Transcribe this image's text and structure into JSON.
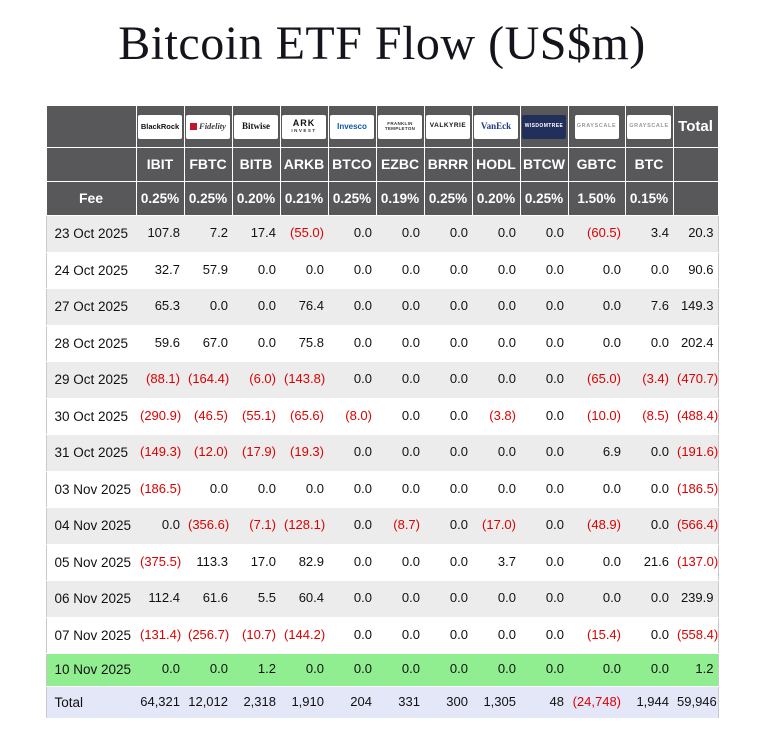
{
  "colors": {
    "header_bg": "#58585a",
    "header_text": "#ffffff",
    "negative": "#dd0000",
    "alt_row_bg": "#ececec",
    "latest_row_bg": "#90ee90",
    "total_row_bg": "#e4e7f7"
  },
  "chart_data": {
    "type": "table",
    "title": "Bitcoin ETF Flow (US$m)",
    "units": "US$m",
    "labels": {
      "fee": "Fee",
      "total": "Total"
    },
    "columns": [
      {
        "provider": "BlackRock",
        "ticker": "IBIT",
        "fee": "0.25%",
        "logo_style": "blackrock",
        "logo_text": "BlackRock"
      },
      {
        "provider": "Fidelity",
        "ticker": "FBTC",
        "fee": "0.25%",
        "logo_style": "fidelity",
        "logo_text": "Fidelity"
      },
      {
        "provider": "Bitwise",
        "ticker": "BITB",
        "fee": "0.20%",
        "logo_style": "bitwise",
        "logo_text": "Bitwise"
      },
      {
        "provider": "ARK Invest",
        "ticker": "ARKB",
        "fee": "0.21%",
        "logo_style": "ark",
        "logo_text": "ARK",
        "logo_sub": "INVEST"
      },
      {
        "provider": "Invesco",
        "ticker": "BTCO",
        "fee": "0.25%",
        "logo_style": "invesco",
        "logo_text": "Invesco"
      },
      {
        "provider": "Franklin Templeton",
        "ticker": "EZBC",
        "fee": "0.19%",
        "logo_style": "franklin",
        "logo_text": "FRANKLIN",
        "logo_sub": "TEMPLETON"
      },
      {
        "provider": "Valkyrie",
        "ticker": "BRRR",
        "fee": "0.25%",
        "logo_style": "valkyrie",
        "logo_text": "VALKYRIE"
      },
      {
        "provider": "VanEck",
        "ticker": "HODL",
        "fee": "0.20%",
        "logo_style": "vaneck",
        "logo_text": "VanEck"
      },
      {
        "provider": "WisdomTree",
        "ticker": "BTCW",
        "fee": "0.25%",
        "logo_style": "wisdomtree",
        "logo_text": "WISDOMTREE"
      },
      {
        "provider": "Grayscale",
        "ticker": "GBTC",
        "fee": "1.50%",
        "logo_style": "grayscale",
        "logo_text": "GRAYSCALE"
      },
      {
        "provider": "Grayscale",
        "ticker": "BTC",
        "fee": "0.15%",
        "logo_style": "grayscale",
        "logo_text": "GRAYSCALE"
      }
    ],
    "rows": [
      {
        "date": "23 Oct 2025",
        "values": [
          "107.8",
          "7.2",
          "17.4",
          "(55.0)",
          "0.0",
          "0.0",
          "0.0",
          "0.0",
          "0.0",
          "(60.5)",
          "3.4",
          "20.3"
        ]
      },
      {
        "date": "24 Oct 2025",
        "values": [
          "32.7",
          "57.9",
          "0.0",
          "0.0",
          "0.0",
          "0.0",
          "0.0",
          "0.0",
          "0.0",
          "0.0",
          "0.0",
          "90.6"
        ]
      },
      {
        "date": "27 Oct 2025",
        "values": [
          "65.3",
          "0.0",
          "0.0",
          "76.4",
          "0.0",
          "0.0",
          "0.0",
          "0.0",
          "0.0",
          "0.0",
          "7.6",
          "149.3"
        ]
      },
      {
        "date": "28 Oct 2025",
        "values": [
          "59.6",
          "67.0",
          "0.0",
          "75.8",
          "0.0",
          "0.0",
          "0.0",
          "0.0",
          "0.0",
          "0.0",
          "0.0",
          "202.4"
        ]
      },
      {
        "date": "29 Oct 2025",
        "values": [
          "(88.1)",
          "(164.4)",
          "(6.0)",
          "(143.8)",
          "0.0",
          "0.0",
          "0.0",
          "0.0",
          "0.0",
          "(65.0)",
          "(3.4)",
          "(470.7)"
        ]
      },
      {
        "date": "30 Oct 2025",
        "values": [
          "(290.9)",
          "(46.5)",
          "(55.1)",
          "(65.6)",
          "(8.0)",
          "0.0",
          "0.0",
          "(3.8)",
          "0.0",
          "(10.0)",
          "(8.5)",
          "(488.4)"
        ]
      },
      {
        "date": "31 Oct 2025",
        "values": [
          "(149.3)",
          "(12.0)",
          "(17.9)",
          "(19.3)",
          "0.0",
          "0.0",
          "0.0",
          "0.0",
          "0.0",
          "6.9",
          "0.0",
          "(191.6)"
        ]
      },
      {
        "date": "03 Nov 2025",
        "values": [
          "(186.5)",
          "0.0",
          "0.0",
          "0.0",
          "0.0",
          "0.0",
          "0.0",
          "0.0",
          "0.0",
          "0.0",
          "0.0",
          "(186.5)"
        ]
      },
      {
        "date": "04 Nov 2025",
        "values": [
          "0.0",
          "(356.6)",
          "(7.1)",
          "(128.1)",
          "0.0",
          "(8.7)",
          "0.0",
          "(17.0)",
          "0.0",
          "(48.9)",
          "0.0",
          "(566.4)"
        ]
      },
      {
        "date": "05 Nov 2025",
        "values": [
          "(375.5)",
          "113.3",
          "17.0",
          "82.9",
          "0.0",
          "0.0",
          "0.0",
          "3.7",
          "0.0",
          "0.0",
          "21.6",
          "(137.0)"
        ]
      },
      {
        "date": "06 Nov 2025",
        "values": [
          "112.4",
          "61.6",
          "5.5",
          "60.4",
          "0.0",
          "0.0",
          "0.0",
          "0.0",
          "0.0",
          "0.0",
          "0.0",
          "239.9"
        ]
      },
      {
        "date": "07 Nov 2025",
        "values": [
          "(131.4)",
          "(256.7)",
          "(10.7)",
          "(144.2)",
          "0.0",
          "0.0",
          "0.0",
          "0.0",
          "0.0",
          "(15.4)",
          "0.0",
          "(558.4)"
        ]
      }
    ],
    "latest_row": {
      "date": "10 Nov 2025",
      "values": [
        "0.0",
        "0.0",
        "1.2",
        "0.0",
        "0.0",
        "0.0",
        "0.0",
        "0.0",
        "0.0",
        "0.0",
        "0.0",
        "1.2"
      ]
    },
    "total_row": {
      "label": "Total",
      "values": [
        "64,321",
        "12,012",
        "2,318",
        "1,910",
        "204",
        "331",
        "300",
        "1,305",
        "48",
        "(24,748)",
        "1,944",
        "59,946"
      ]
    }
  }
}
